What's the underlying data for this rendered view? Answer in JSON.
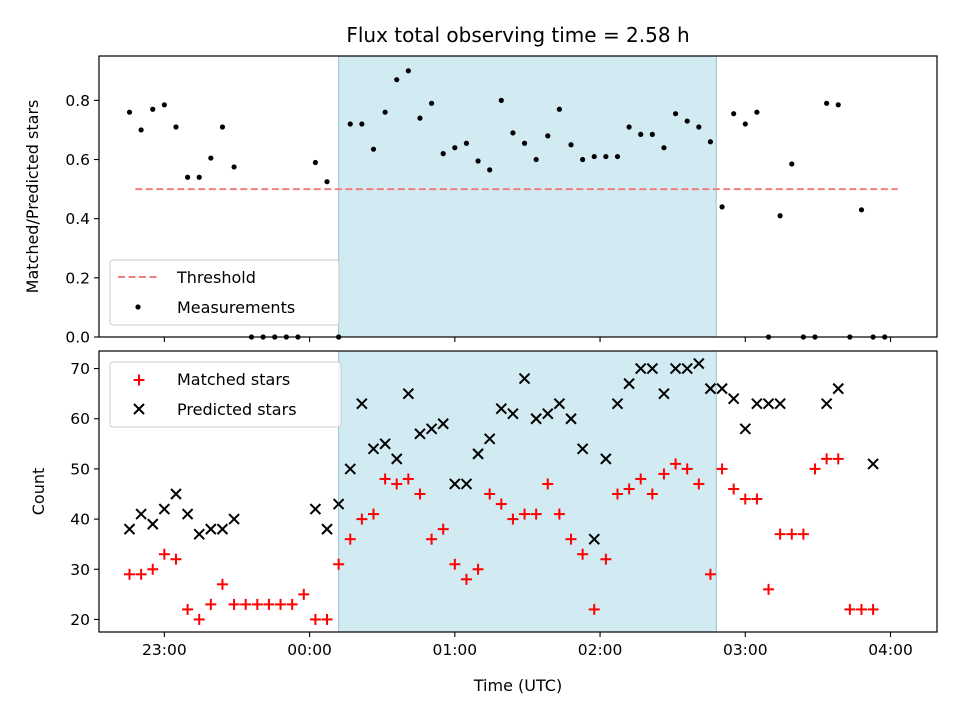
{
  "chart_data": {
    "type": "scatter",
    "title": "Flux total observing time = 2.58 h",
    "xlabel": "Time (UTC)",
    "x_unit": "hours after 22:00 UTC",
    "x_ticks": [
      {
        "value": 1,
        "label": "23:00"
      },
      {
        "value": 2,
        "label": "00:00"
      },
      {
        "value": 3,
        "label": "01:00"
      },
      {
        "value": 4,
        "label": "02:00"
      },
      {
        "value": 5,
        "label": "03:00"
      },
      {
        "value": 6,
        "label": "04:00"
      }
    ],
    "xlim": [
      0.55,
      6.32
    ],
    "shaded_interval": [
      2.2,
      4.8
    ],
    "shade_color": "#add8e6",
    "panels": [
      {
        "id": "top",
        "ylabel": "Matched/Predicted stars",
        "ylim": [
          0.0,
          0.95
        ],
        "y_ticks": [
          {
            "value": 0.0,
            "label": "0.0"
          },
          {
            "value": 0.2,
            "label": "0.2"
          },
          {
            "value": 0.4,
            "label": "0.4"
          },
          {
            "value": 0.6,
            "label": "0.6"
          },
          {
            "value": 0.8,
            "label": "0.8"
          }
        ],
        "threshold": {
          "name": "Threshold",
          "value": 0.5,
          "x_start": 0.8,
          "x_end": 6.05,
          "color": "#f08080"
        },
        "measurements": {
          "name": "Measurements",
          "color": "#000000",
          "points": [
            [
              0.76,
              0.76
            ],
            [
              0.84,
              0.7
            ],
            [
              0.92,
              0.77
            ],
            [
              1.0,
              0.785
            ],
            [
              1.08,
              0.71
            ],
            [
              1.16,
              0.54
            ],
            [
              1.24,
              0.54
            ],
            [
              1.32,
              0.605
            ],
            [
              1.4,
              0.71
            ],
            [
              1.48,
              0.575
            ],
            [
              1.6,
              0.0
            ],
            [
              1.68,
              0.0
            ],
            [
              1.76,
              0.0
            ],
            [
              1.84,
              0.0
            ],
            [
              1.92,
              0.0
            ],
            [
              2.04,
              0.59
            ],
            [
              2.12,
              0.525
            ],
            [
              2.2,
              0.0
            ],
            [
              2.28,
              0.72
            ],
            [
              2.36,
              0.72
            ],
            [
              2.44,
              0.635
            ],
            [
              2.52,
              0.76
            ],
            [
              2.6,
              0.87
            ],
            [
              2.68,
              0.9
            ],
            [
              2.76,
              0.74
            ],
            [
              2.84,
              0.79
            ],
            [
              2.92,
              0.62
            ],
            [
              3.0,
              0.64
            ],
            [
              3.08,
              0.655
            ],
            [
              3.16,
              0.595
            ],
            [
              3.24,
              0.565
            ],
            [
              3.32,
              0.8
            ],
            [
              3.4,
              0.69
            ],
            [
              3.48,
              0.655
            ],
            [
              3.56,
              0.6
            ],
            [
              3.64,
              0.68
            ],
            [
              3.72,
              0.77
            ],
            [
              3.8,
              0.65
            ],
            [
              3.88,
              0.6
            ],
            [
              3.96,
              0.61
            ],
            [
              4.04,
              0.61
            ],
            [
              4.12,
              0.61
            ],
            [
              4.2,
              0.71
            ],
            [
              4.28,
              0.685
            ],
            [
              4.36,
              0.685
            ],
            [
              4.44,
              0.64
            ],
            [
              4.52,
              0.755
            ],
            [
              4.6,
              0.73
            ],
            [
              4.68,
              0.71
            ],
            [
              4.76,
              0.66
            ],
            [
              4.84,
              0.44
            ],
            [
              4.92,
              0.755
            ],
            [
              5.0,
              0.72
            ],
            [
              5.08,
              0.76
            ],
            [
              5.16,
              0.0
            ],
            [
              5.24,
              0.41
            ],
            [
              5.32,
              0.585
            ],
            [
              5.4,
              0.0
            ],
            [
              5.48,
              0.0
            ],
            [
              5.56,
              0.79
            ],
            [
              5.64,
              0.785
            ],
            [
              5.72,
              0.0
            ],
            [
              5.8,
              0.43
            ],
            [
              5.88,
              0.0
            ],
            [
              5.96,
              0.0
            ]
          ]
        },
        "legend": {
          "placement": "lower-left",
          "entries": [
            "Threshold",
            "Measurements"
          ]
        }
      },
      {
        "id": "bottom",
        "ylabel": "Count",
        "ylim": [
          17.5,
          73.5
        ],
        "y_ticks": [
          {
            "value": 20,
            "label": "20"
          },
          {
            "value": 30,
            "label": "30"
          },
          {
            "value": 40,
            "label": "40"
          },
          {
            "value": 50,
            "label": "50"
          },
          {
            "value": 60,
            "label": "60"
          },
          {
            "value": 70,
            "label": "70"
          }
        ],
        "series": [
          {
            "name": "Matched stars",
            "marker": "plus",
            "color": "#ff0000",
            "points": [
              [
                0.76,
                29
              ],
              [
                0.84,
                29
              ],
              [
                0.92,
                30
              ],
              [
                1.0,
                33
              ],
              [
                1.08,
                32
              ],
              [
                1.16,
                22
              ],
              [
                1.24,
                20
              ],
              [
                1.32,
                23
              ],
              [
                1.4,
                27
              ],
              [
                1.48,
                23
              ],
              [
                1.56,
                23
              ],
              [
                1.64,
                23
              ],
              [
                1.72,
                23
              ],
              [
                1.8,
                23
              ],
              [
                1.88,
                23
              ],
              [
                1.96,
                25
              ],
              [
                2.04,
                20
              ],
              [
                2.12,
                20
              ],
              [
                2.2,
                31
              ],
              [
                2.28,
                36
              ],
              [
                2.36,
                40
              ],
              [
                2.44,
                41
              ],
              [
                2.52,
                48
              ],
              [
                2.6,
                47
              ],
              [
                2.68,
                48
              ],
              [
                2.76,
                45
              ],
              [
                2.84,
                36
              ],
              [
                2.92,
                38
              ],
              [
                3.0,
                31
              ],
              [
                3.08,
                28
              ],
              [
                3.16,
                30
              ],
              [
                3.24,
                45
              ],
              [
                3.32,
                43
              ],
              [
                3.4,
                40
              ],
              [
                3.48,
                41
              ],
              [
                3.56,
                41
              ],
              [
                3.64,
                47
              ],
              [
                3.72,
                41
              ],
              [
                3.8,
                36
              ],
              [
                3.88,
                33
              ],
              [
                3.96,
                22
              ],
              [
                4.04,
                32
              ],
              [
                4.12,
                45
              ],
              [
                4.2,
                46
              ],
              [
                4.28,
                48
              ],
              [
                4.36,
                45
              ],
              [
                4.44,
                49
              ],
              [
                4.52,
                51
              ],
              [
                4.6,
                50
              ],
              [
                4.68,
                47
              ],
              [
                4.76,
                29
              ],
              [
                4.84,
                50
              ],
              [
                4.92,
                46
              ],
              [
                5.0,
                44
              ],
              [
                5.08,
                44
              ],
              [
                5.16,
                26
              ],
              [
                5.24,
                37
              ],
              [
                5.32,
                37
              ],
              [
                5.4,
                37
              ],
              [
                5.48,
                50
              ],
              [
                5.56,
                52
              ],
              [
                5.64,
                52
              ],
              [
                5.72,
                22
              ],
              [
                5.8,
                22
              ],
              [
                5.88,
                22
              ]
            ]
          },
          {
            "name": "Predicted stars",
            "marker": "x",
            "color": "#000000",
            "points": [
              [
                0.76,
                38
              ],
              [
                0.84,
                41
              ],
              [
                0.92,
                39
              ],
              [
                1.0,
                42
              ],
              [
                1.08,
                45
              ],
              [
                1.16,
                41
              ],
              [
                1.24,
                37
              ],
              [
                1.32,
                38
              ],
              [
                1.4,
                38
              ],
              [
                1.48,
                40
              ],
              [
                2.04,
                42
              ],
              [
                2.12,
                38
              ],
              [
                2.2,
                43
              ],
              [
                2.28,
                50
              ],
              [
                2.36,
                63
              ],
              [
                2.44,
                54
              ],
              [
                2.52,
                55
              ],
              [
                2.6,
                52
              ],
              [
                2.68,
                65
              ],
              [
                2.76,
                57
              ],
              [
                2.84,
                58
              ],
              [
                2.92,
                59
              ],
              [
                3.0,
                47
              ],
              [
                3.08,
                47
              ],
              [
                3.16,
                53
              ],
              [
                3.24,
                56
              ],
              [
                3.32,
                62
              ],
              [
                3.4,
                61
              ],
              [
                3.48,
                68
              ],
              [
                3.56,
                60
              ],
              [
                3.64,
                61
              ],
              [
                3.72,
                63
              ],
              [
                3.8,
                60
              ],
              [
                3.88,
                54
              ],
              [
                3.96,
                36
              ],
              [
                4.04,
                52
              ],
              [
                4.12,
                63
              ],
              [
                4.2,
                67
              ],
              [
                4.28,
                70
              ],
              [
                4.36,
                70
              ],
              [
                4.44,
                65
              ],
              [
                4.52,
                70
              ],
              [
                4.6,
                70
              ],
              [
                4.68,
                71
              ],
              [
                4.76,
                66
              ],
              [
                4.84,
                66
              ],
              [
                4.92,
                64
              ],
              [
                5.0,
                58
              ],
              [
                5.08,
                63
              ],
              [
                5.16,
                63
              ],
              [
                5.24,
                63
              ],
              [
                5.56,
                63
              ],
              [
                5.64,
                66
              ],
              [
                5.88,
                51
              ]
            ]
          }
        ],
        "legend": {
          "placement": "top-left",
          "entries": [
            "Matched stars",
            "Predicted stars"
          ]
        }
      }
    ]
  }
}
